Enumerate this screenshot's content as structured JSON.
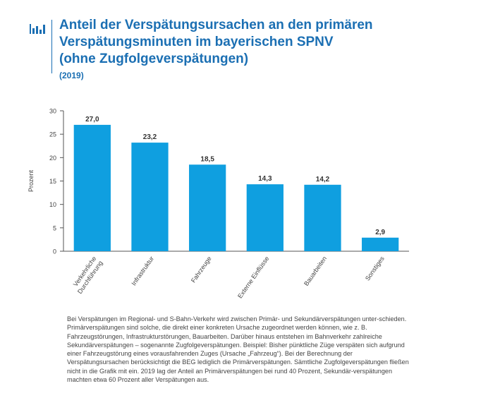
{
  "header": {
    "title_line1": "Anteil der Verspätungsursachen an den primären",
    "title_line2": "Verspätungsminuten im bayerischen SPNV",
    "title_line3": "(ohne Zugfolgeverspätungen)",
    "subtitle": "(2019)",
    "icon": "bar-chart-icon"
  },
  "colors": {
    "accent": "#1b6fb3",
    "bar": "#0f9fe0",
    "axis": "#555555"
  },
  "chart_data": {
    "type": "bar",
    "categories": [
      "Verkehrliche Durchführung",
      "Infrastruktur",
      "Fahrzeuge",
      "Externe Einflüsse",
      "Bauarbeiten",
      "Sonstiges"
    ],
    "category_lines": [
      [
        "Verkehrliche",
        "Durchführung"
      ],
      [
        "Infrastruktur"
      ],
      [
        "Fahrzeuge"
      ],
      [
        "Externe Einflüsse"
      ],
      [
        "Bauarbeiten"
      ],
      [
        "Sonstiges"
      ]
    ],
    "values": [
      27.0,
      23.2,
      18.5,
      14.3,
      14.2,
      2.9
    ],
    "value_labels": [
      "27,0",
      "23,2",
      "18,5",
      "14,3",
      "14,2",
      "2,9"
    ],
    "ylabel": "Prozent",
    "xlabel": "",
    "ylim": [
      0,
      30
    ],
    "yticks": [
      0,
      5,
      10,
      15,
      20,
      25,
      30
    ],
    "grid": false,
    "legend": "none"
  },
  "description": "Bei Verspätungen im Regional- und S-Bahn-Verkehr wird zwischen Primär- und Sekundärverspätungen unter-schieden. Primärverspätungen sind solche, die direkt einer konkreten Ursache zugeordnet werden können, wie z. B. Fahrzeugstörungen, Infrastrukturstörungen, Bauarbeiten. Darüber hinaus entstehen im Bahnverkehr zahlreiche Sekundärverspätungen – sogenannte Zugfolgeverspätungen. Beispiel: Bisher pünktliche Züge verspäten sich aufgrund einer Fahrzeugstörung eines vorausfahrenden Zuges (Ursache „Fahrzeug“). Bei der Berechnung der Verspätungsursachen berücksichtigt die BEG lediglich die Primärverspätungen. Sämtliche Zugfolgeverspätungen fließen nicht in die Grafik mit ein. 2019 lag der Anteil an Primärverspätungen bei rund 40 Prozent, Sekundär-verspätungen machten etwa 60 Prozent aller Verspätungen aus."
}
